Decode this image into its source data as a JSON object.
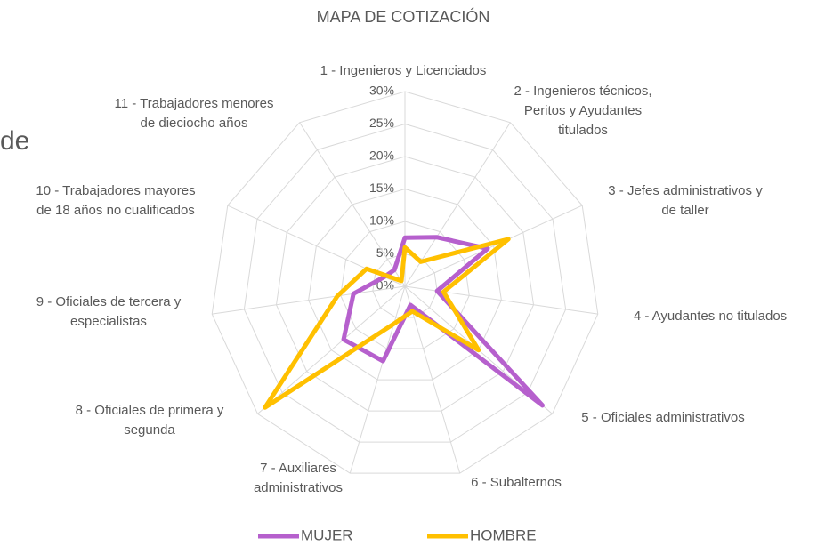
{
  "background_text": "de",
  "chart_data": {
    "type": "radar",
    "title": "MAPA DE COTIZACIÓN",
    "categories": [
      "1 - Ingenieros y Licenciados",
      "2 - Ingenieros técnicos,\nPeritos y Ayudantes\ntitulados",
      "3 - Jefes administrativos y\nde taller",
      "4 - Ayudantes no titulados",
      "5 - Oficiales administrativos",
      "6 - Subalternos",
      "7 - Auxiliares\nadministrativos",
      "8 - Oficiales de primera y\nsegunda",
      "9 - Oficiales de tercera y\nespecialistas",
      "10 - Trabajadores mayores\nde 18 años no cualificados",
      "11 - Trabajadores menores\nde dieciocho años"
    ],
    "series": [
      {
        "name": "MUJER",
        "color": "#b660cd",
        "values": [
          7.5,
          9,
          14,
          5,
          28,
          3,
          12,
          12.5,
          8,
          3.5,
          3
        ]
      },
      {
        "name": "HOMBRE",
        "color": "#ffc000",
        "values": [
          6,
          4.5,
          17.5,
          6,
          15,
          4,
          6,
          28.5,
          10.5,
          6.5,
          1
        ]
      }
    ],
    "ylim": [
      0,
      30
    ],
    "yticks": [
      {
        "value": 0,
        "label": "0%"
      },
      {
        "value": 5,
        "label": "5%"
      },
      {
        "value": 10,
        "label": "10%"
      },
      {
        "value": 15,
        "label": "15%"
      },
      {
        "value": 20,
        "label": "20%"
      },
      {
        "value": 25,
        "label": "25%"
      },
      {
        "value": 30,
        "label": "30%"
      }
    ],
    "grid": true,
    "legend": "bottom"
  }
}
